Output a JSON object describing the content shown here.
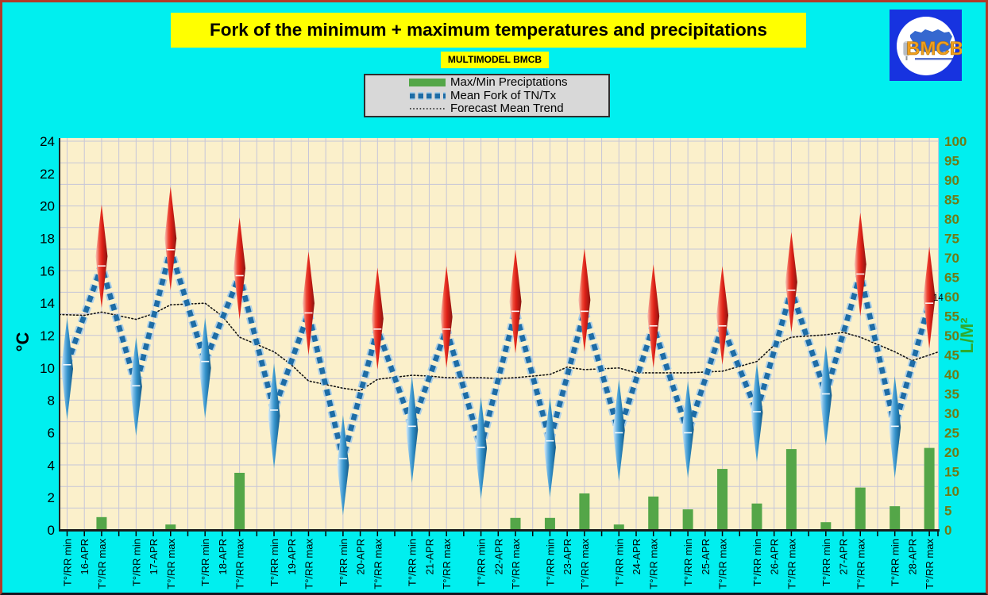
{
  "window": {
    "background": "#00efef",
    "frame_color": "#b13a2a"
  },
  "header": {
    "title": "Fork of the minimum + maximum temperatures and precipitations",
    "subtitle": "MULTIMODEL BMCB"
  },
  "legend": {
    "items": [
      {
        "label": "Max/Min Preciptations",
        "swatch": "green-bar",
        "color": "#54a648"
      },
      {
        "label": "Mean Fork of TN/Tx",
        "swatch": "blue-dashed-line",
        "color": "#1d6ca6"
      },
      {
        "label": "Forecast Mean Trend",
        "swatch": "black-dotted-line",
        "color": "#141414"
      }
    ]
  },
  "logo": {
    "text": "BMCB"
  },
  "chart_data": {
    "type": "combo",
    "title": "Fork of the minimum + maximum temperatures and precipitations",
    "subtitle": "MULTIMODEL BMCB",
    "left_axis": {
      "title": "°C",
      "min": 0,
      "max": 24,
      "tick_step": 2
    },
    "right_axis": {
      "title": "L/M²",
      "min": 0,
      "max": 100,
      "tick_step": 5
    },
    "x_slot_labels": {
      "min": "T°/RR min",
      "max": "T°/RR max"
    },
    "days": [
      {
        "date": "16-APR",
        "fork_min": {
          "lo": 6.8,
          "mean": 10.2,
          "hi": 13.1
        },
        "fork_max": {
          "lo": 13.7,
          "mean": 16.3,
          "hi": 20.1
        },
        "precip_min_LM2": 0,
        "precip_max_LM2": 3.3
      },
      {
        "date": "17-APR",
        "fork_min": {
          "lo": 5.8,
          "mean": 8.9,
          "hi": 11.9
        },
        "fork_max": {
          "lo": 14.8,
          "mean": 17.3,
          "hi": 21.2
        },
        "precip_min_LM2": 0,
        "precip_max_LM2": 1.4
      },
      {
        "date": "18-APR",
        "fork_min": {
          "lo": 6.9,
          "mean": 10.4,
          "hi": 13.1
        },
        "fork_max": {
          "lo": 13.0,
          "mean": 15.7,
          "hi": 19.3
        },
        "precip_min_LM2": 0,
        "precip_max_LM2": 14.7
      },
      {
        "date": "19-APR",
        "fork_min": {
          "lo": 3.8,
          "mean": 7.4,
          "hi": 10.3
        },
        "fork_max": {
          "lo": 10.8,
          "mean": 13.4,
          "hi": 17.2
        },
        "precip_min_LM2": 0,
        "precip_max_LM2": 0
      },
      {
        "date": "20-APR",
        "fork_min": {
          "lo": 0.9,
          "mean": 4.4,
          "hi": 7.1
        },
        "fork_max": {
          "lo": 9.9,
          "mean": 12.4,
          "hi": 16.2
        },
        "precip_min_LM2": 0,
        "precip_max_LM2": 0
      },
      {
        "date": "21-APR",
        "fork_min": {
          "lo": 2.9,
          "mean": 6.4,
          "hi": 9.5
        },
        "fork_max": {
          "lo": 10.0,
          "mean": 12.4,
          "hi": 16.3
        },
        "precip_min_LM2": 0,
        "precip_max_LM2": 0
      },
      {
        "date": "22-APR",
        "fork_min": {
          "lo": 1.9,
          "mean": 5.1,
          "hi": 8.2
        },
        "fork_max": {
          "lo": 10.9,
          "mean": 13.5,
          "hi": 17.3
        },
        "precip_min_LM2": 0,
        "precip_max_LM2": 3.1
      },
      {
        "date": "23-APR",
        "fork_min": {
          "lo": 2.0,
          "mean": 5.5,
          "hi": 8.2
        },
        "fork_max": {
          "lo": 11.0,
          "mean": 13.5,
          "hi": 17.4
        },
        "precip_min_LM2": 3.1,
        "precip_max_LM2": 9.4
      },
      {
        "date": "24-APR",
        "fork_min": {
          "lo": 3.0,
          "mean": 6.0,
          "hi": 9.3
        },
        "fork_max": {
          "lo": 10.0,
          "mean": 12.6,
          "hi": 16.4
        },
        "precip_min_LM2": 1.4,
        "precip_max_LM2": 8.6
      },
      {
        "date": "25-APR",
        "fork_min": {
          "lo": 3.2,
          "mean": 6.0,
          "hi": 9.2
        },
        "fork_max": {
          "lo": 10.2,
          "mean": 12.6,
          "hi": 16.3
        },
        "precip_min_LM2": 5.3,
        "precip_max_LM2": 15.7
      },
      {
        "date": "26-APR",
        "fork_min": {
          "lo": 4.2,
          "mean": 7.3,
          "hi": 10.3
        },
        "fork_max": {
          "lo": 12.2,
          "mean": 14.8,
          "hi": 18.4
        },
        "precip_min_LM2": 6.8,
        "precip_max_LM2": 20.8
      },
      {
        "date": "27-APR",
        "fork_min": {
          "lo": 5.2,
          "mean": 8.4,
          "hi": 11.4
        },
        "fork_max": {
          "lo": 13.2,
          "mean": 15.8,
          "hi": 19.6
        },
        "precip_min_LM2": 2.0,
        "precip_max_LM2": 10.9
      },
      {
        "date": "28-APR",
        "fork_min": {
          "lo": 3.2,
          "mean": 6.4,
          "hi": 9.5
        },
        "fork_max": {
          "lo": 11.2,
          "mean": 14.0,
          "hi": 17.5
        },
        "precip_min_LM2": 6.1,
        "precip_max_LM2": 21.1
      }
    ],
    "series_names": {
      "bars": "Max/Min Preciptations",
      "mean_fork": "Mean Fork of TN/Tx",
      "trend": "Forecast Mean Trend"
    },
    "trend_series": {
      "name": "Forecast Mean Trend",
      "points": [
        {
          "s": -0.45,
          "v": 13.3
        },
        {
          "s": 1,
          "v": 13.25
        },
        {
          "s": 2,
          "v": 13.45
        },
        {
          "s": 4,
          "v": 13.0
        },
        {
          "s": 5,
          "v": 13.35
        },
        {
          "s": 6,
          "v": 13.9
        },
        {
          "s": 8,
          "v": 14.0
        },
        {
          "s": 9,
          "v": 13.2
        },
        {
          "s": 10,
          "v": 11.9
        },
        {
          "s": 12,
          "v": 11.0
        },
        {
          "s": 13,
          "v": 10.2
        },
        {
          "s": 14,
          "v": 9.2
        },
        {
          "s": 16,
          "v": 8.75
        },
        {
          "s": 17,
          "v": 8.6
        },
        {
          "s": 18,
          "v": 9.3
        },
        {
          "s": 20,
          "v": 9.55
        },
        {
          "s": 21,
          "v": 9.5
        },
        {
          "s": 22,
          "v": 9.4
        },
        {
          "s": 24,
          "v": 9.4
        },
        {
          "s": 25,
          "v": 9.35
        },
        {
          "s": 26,
          "v": 9.4
        },
        {
          "s": 28,
          "v": 9.6
        },
        {
          "s": 29,
          "v": 10.05
        },
        {
          "s": 30,
          "v": 9.9
        },
        {
          "s": 32,
          "v": 10.0
        },
        {
          "s": 33,
          "v": 9.7
        },
        {
          "s": 34,
          "v": 9.7
        },
        {
          "s": 36,
          "v": 9.7
        },
        {
          "s": 37,
          "v": 9.75
        },
        {
          "s": 38,
          "v": 9.8
        },
        {
          "s": 40,
          "v": 10.4
        },
        {
          "s": 41,
          "v": 11.4
        },
        {
          "s": 42,
          "v": 11.9
        },
        {
          "s": 44,
          "v": 12.05
        },
        {
          "s": 45,
          "v": 12.2
        },
        {
          "s": 46,
          "v": 11.9
        },
        {
          "s": 48,
          "v": 11.0
        },
        {
          "s": 49,
          "v": 10.45
        },
        {
          "s": 50,
          "v": 10.8
        },
        {
          "s": 50.55,
          "v": 11.0
        }
      ]
    },
    "annotation": {
      "text": "14",
      "value": 14,
      "attached_to": "28-APR fork_max mean"
    },
    "layout": {
      "grid": true,
      "legend_position": "top-center"
    },
    "colors": {
      "plot_bg": "#fbf0cb",
      "grid": "#c6c6d8",
      "bar": "#54a648",
      "mean_line": "#1d6ca6",
      "mean_line_casing": "#abcfe8",
      "trend_line": "#141414",
      "axis": "#1b1b1b",
      "left_tick_text": "#000000",
      "right_tick_text": "#6e7b16",
      "right_title_text": "#2faa2f",
      "spike_red_stops": [
        "#f7cabd",
        "#ee4a38",
        "#dd2017",
        "#8a1410"
      ],
      "spike_blue_stops": [
        "#e2f1fb",
        "#6cb4e2",
        "#3391c9",
        "#135a89"
      ]
    }
  }
}
